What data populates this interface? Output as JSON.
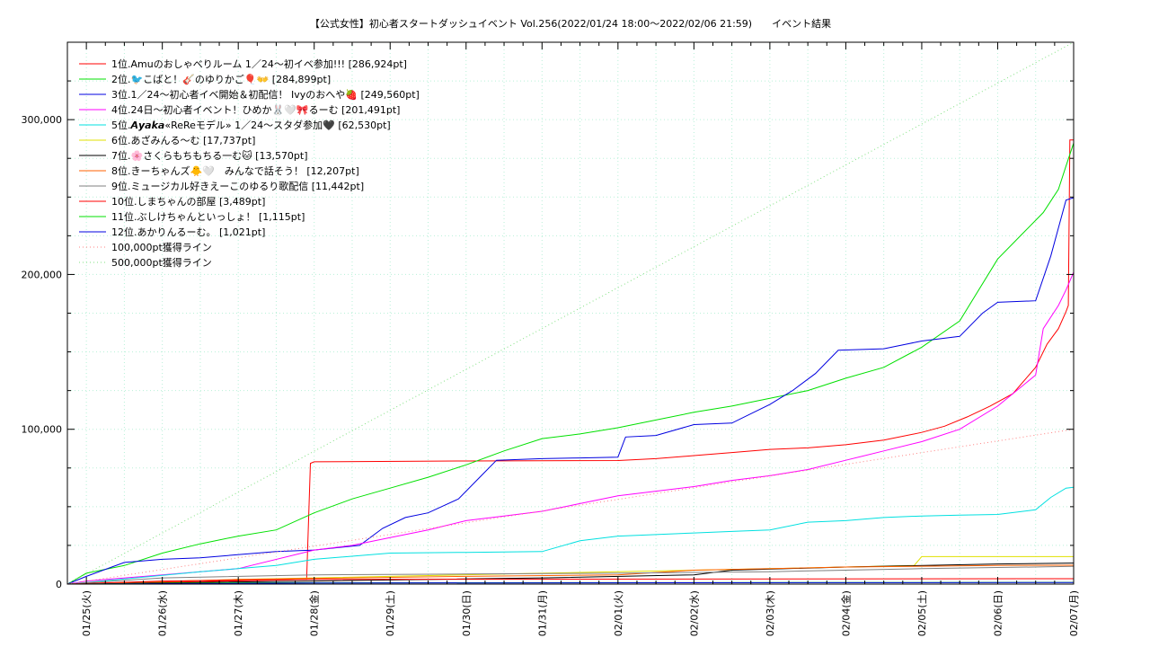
{
  "chart_data": {
    "type": "line",
    "title": "【公式女性】初心者スタートダッシュイベント Vol.256(2022/01/24 18:00～2022/02/06 21:59)　　イベント結果",
    "xlabel": "",
    "ylabel": "",
    "x_ticks": [
      "01/25(火)",
      "01/26(水)",
      "01/27(木)",
      "01/28(金)",
      "01/29(土)",
      "01/30(日)",
      "01/31(月)",
      "02/01(火)",
      "02/02(水)",
      "02/03(木)",
      "02/04(金)",
      "02/05(土)",
      "02/06(日)",
      "02/07(月)"
    ],
    "x_unit": "days from 01/25 00:00",
    "xlim": [
      -0.25,
      13.0
    ],
    "y_ticks": [
      "0",
      "100,000",
      "200,000",
      "300,000"
    ],
    "y_tick_values": [
      0,
      100000,
      200000,
      300000
    ],
    "ylim": [
      0,
      350000
    ],
    "grid": true,
    "legend_position": "top-left",
    "series": [
      {
        "name": "1位.Amuのおしゃべりルーム 1／24〜初イベ参加!!! [286,924pt]",
        "color": "#ff0000",
        "style": "solid",
        "x": [
          -0.25,
          0.9,
          1.9,
          2.9,
          2.95,
          3.0,
          5.0,
          7.0,
          7.5,
          8.0,
          8.5,
          9.0,
          9.5,
          10.0,
          10.5,
          11.0,
          11.3,
          11.6,
          11.9,
          12.2,
          12.5,
          12.65,
          12.8,
          12.9,
          12.93,
          12.95,
          13.0
        ],
        "y": [
          0,
          1000,
          2000,
          3000,
          78000,
          79000,
          79500,
          79800,
          81000,
          83000,
          85000,
          87000,
          88000,
          90000,
          93000,
          98000,
          102000,
          108000,
          115000,
          123000,
          140000,
          155000,
          165000,
          176000,
          180000,
          286924,
          286924
        ]
      },
      {
        "name": "2位.🐦こばと！🎸のゆりかご🎈👐 [284,899pt]",
        "color": "#00e000",
        "style": "solid",
        "x": [
          -0.25,
          0.0,
          0.5,
          1.0,
          1.5,
          2.0,
          2.5,
          3.0,
          3.5,
          4.0,
          4.5,
          5.0,
          5.5,
          6.0,
          6.5,
          7.0,
          7.5,
          8.0,
          8.5,
          9.0,
          9.5,
          10.0,
          10.5,
          11.0,
          11.5,
          12.0,
          12.3,
          12.6,
          12.8,
          12.9,
          13.0
        ],
        "y": [
          0,
          7000,
          12000,
          20000,
          26000,
          31000,
          35000,
          46000,
          55000,
          62000,
          69000,
          77000,
          86000,
          94000,
          97000,
          101000,
          106000,
          111000,
          115000,
          120000,
          125000,
          133000,
          140000,
          153000,
          170000,
          210000,
          225000,
          240000,
          255000,
          270000,
          284899
        ]
      },
      {
        "name": "3位.1／24〜初心者イベ開始＆初配信！ Ivyのおへや🍓 [249,560pt]",
        "color": "#0000e0",
        "style": "solid",
        "x": [
          -0.25,
          0.0,
          0.5,
          1.0,
          1.5,
          2.5,
          3.0,
          3.6,
          3.9,
          4.2,
          4.5,
          4.9,
          5.2,
          5.4,
          6.0,
          6.5,
          7.0,
          7.1,
          7.5,
          8.0,
          8.5,
          9.0,
          9.3,
          9.6,
          9.9,
          10.5,
          11.0,
          11.5,
          11.8,
          12.0,
          12.5,
          12.7,
          12.9,
          13.0
        ],
        "y": [
          0,
          5000,
          14000,
          16000,
          17000,
          21000,
          22000,
          25000,
          36000,
          43000,
          46000,
          55000,
          70000,
          80000,
          81000,
          81500,
          82000,
          95000,
          96000,
          103000,
          104000,
          116000,
          125000,
          136000,
          151000,
          152000,
          157000,
          160000,
          175000,
          182000,
          183000,
          212000,
          248000,
          249560
        ]
      },
      {
        "name": "4位.24日〜初心者イベント！ひめか🐰🤍🎀るーむ [201,491pt]",
        "color": "#ff00ff",
        "style": "solid",
        "x": [
          -0.25,
          0.0,
          1.0,
          2.0,
          3.0,
          3.5,
          4.0,
          4.5,
          5.0,
          5.5,
          6.0,
          6.5,
          7.0,
          7.5,
          8.0,
          8.5,
          9.0,
          9.5,
          10.0,
          10.5,
          11.0,
          11.5,
          12.0,
          12.3,
          12.5,
          12.6,
          12.8,
          12.9,
          13.0
        ],
        "y": [
          0,
          2000,
          6000,
          10000,
          22000,
          25000,
          30000,
          35000,
          41000,
          44000,
          47000,
          52000,
          57000,
          60000,
          63000,
          67000,
          70000,
          74000,
          80000,
          86000,
          92000,
          100000,
          115000,
          127000,
          135000,
          165000,
          180000,
          190000,
          201491
        ]
      },
      {
        "name": "5位.𝘼𝙮𝙖𝙠𝙖«ReReモデル» 1／24〜スタダ参加🖤 [62,530pt]",
        "color": "#00e0e0",
        "style": "solid",
        "x": [
          -0.25,
          0.0,
          1.5,
          2.5,
          3.0,
          4.0,
          5.0,
          6.0,
          6.5,
          7.0,
          7.5,
          8.0,
          8.5,
          9.0,
          9.5,
          10.0,
          10.5,
          11.0,
          11.5,
          12.0,
          12.5,
          12.7,
          12.9,
          13.0
        ],
        "y": [
          0,
          1000,
          8000,
          12000,
          16000,
          20000,
          20500,
          21000,
          28000,
          31000,
          32000,
          33000,
          34000,
          35000,
          40000,
          41000,
          43000,
          44000,
          44500,
          45000,
          48000,
          56000,
          62000,
          62530
        ]
      },
      {
        "name": "6位.あざみんる〜む [17,737pt]",
        "color": "#e0e000",
        "style": "solid",
        "x": [
          -0.25,
          2.0,
          4.0,
          6.0,
          8.0,
          10.0,
          10.9,
          11.0,
          13.0
        ],
        "y": [
          0,
          3000,
          5000,
          7000,
          9000,
          11000,
          12000,
          17737,
          17737
        ]
      },
      {
        "name": "7位.🌸さくらもちもちる一む🐱 [13,570pt]",
        "color": "#000000",
        "style": "solid",
        "x": [
          -0.25,
          3.0,
          6.0,
          8.0,
          8.5,
          10.0,
          12.0,
          13.0
        ],
        "y": [
          0,
          2000,
          4000,
          6000,
          9000,
          11000,
          13000,
          13570
        ]
      },
      {
        "name": "8位.きーちゃんズ🐥🤍　みんなで話そう！ [12,207pt]",
        "color": "#ff6000",
        "style": "solid",
        "x": [
          -0.25,
          2.0,
          5.0,
          7.0,
          8.0,
          10.0,
          12.0,
          13.0
        ],
        "y": [
          0,
          3000,
          5000,
          6000,
          9000,
          11000,
          12000,
          12207
        ]
      },
      {
        "name": "9位.ミュージカル好きえーこのゆるり歌配信 [11,442pt]",
        "color": "#808080",
        "style": "solid",
        "x": [
          -0.25,
          1.0,
          3.0,
          5.0,
          7.0,
          9.0,
          11.0,
          13.0
        ],
        "y": [
          0,
          4000,
          6000,
          6500,
          7000,
          8000,
          10000,
          11442
        ]
      },
      {
        "name": "10位.しまちゃんの部屋 [3,489pt]",
        "color": "#ff0000",
        "style": "solid",
        "x": [
          -0.25,
          1.0,
          3.0,
          13.0
        ],
        "y": [
          0,
          2000,
          3000,
          3489
        ]
      },
      {
        "name": "11位.ぶしけちゃんといっしょ！ [1,115pt]",
        "color": "#00e000",
        "style": "solid",
        "x": [
          -0.25,
          2.0,
          13.0
        ],
        "y": [
          0,
          800,
          1115
        ]
      },
      {
        "name": "12位.あかりんるーむ。 [1,021pt]",
        "color": "#0000e0",
        "style": "solid",
        "x": [
          -0.25,
          3.0,
          13.0
        ],
        "y": [
          0,
          700,
          1021
        ]
      },
      {
        "name": "100,000pt獲得ライン",
        "color": "#ff8080",
        "style": "dotted",
        "x": [
          -0.25,
          13.0
        ],
        "y": [
          0,
          100000
        ]
      },
      {
        "name": "500,000pt獲得ライン",
        "color": "#80e080",
        "style": "dotted",
        "x": [
          -0.25,
          13.0
        ],
        "y": [
          0,
          500000
        ]
      }
    ]
  }
}
